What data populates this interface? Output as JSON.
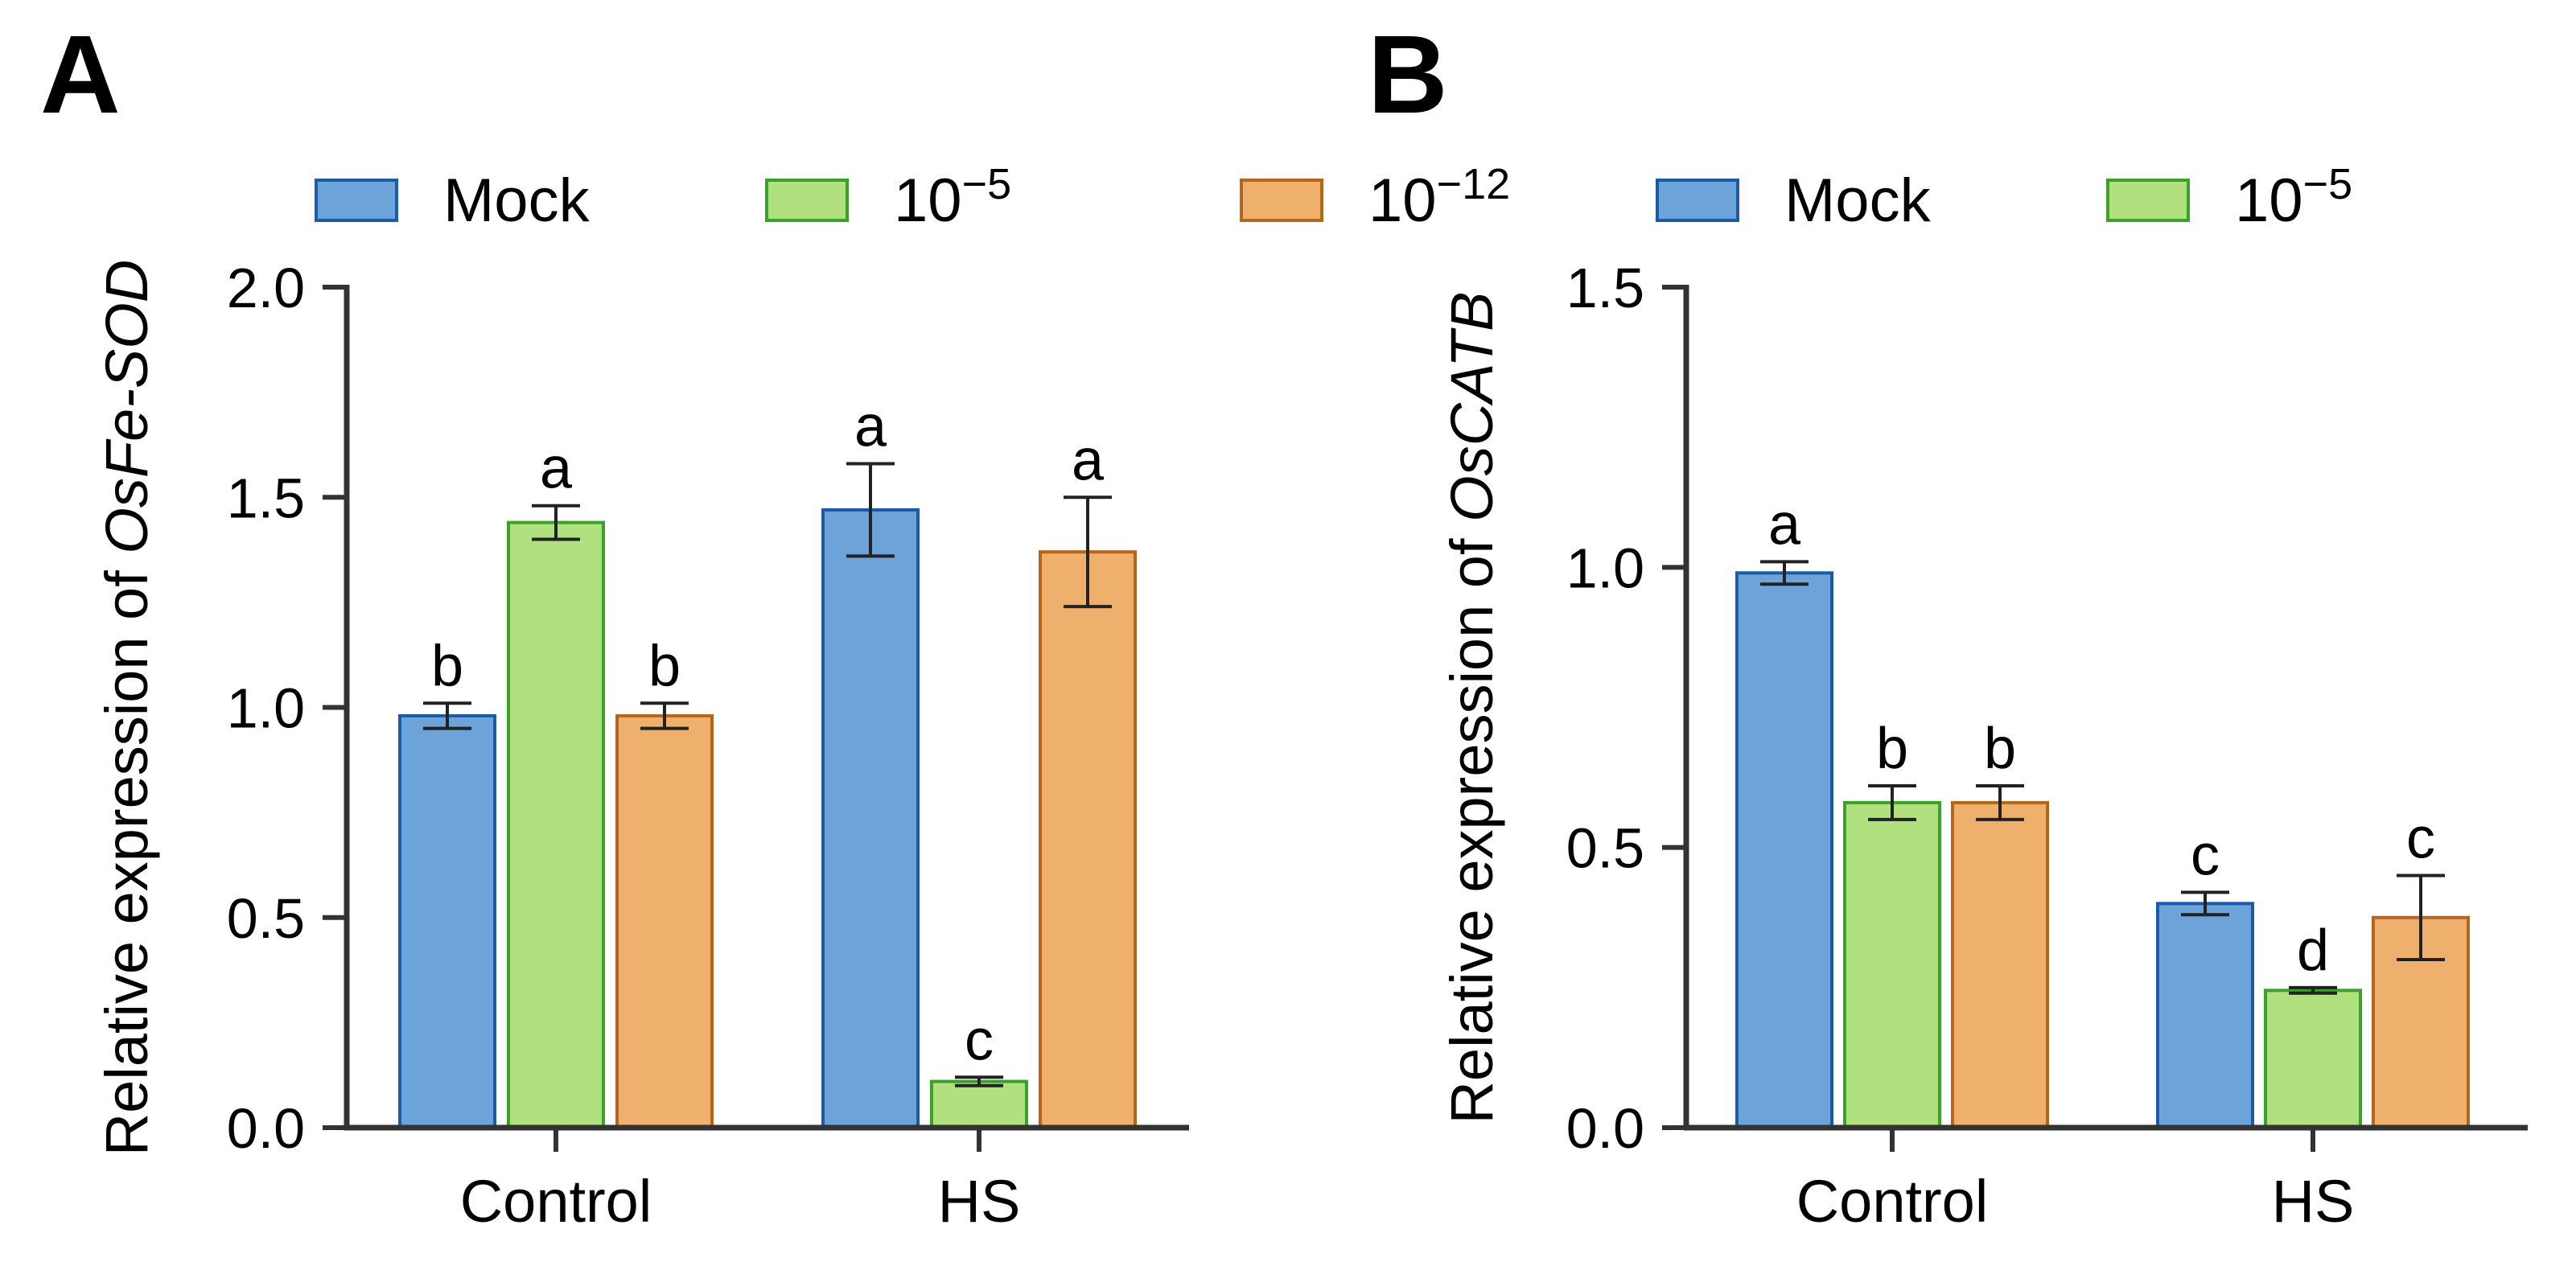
{
  "chart_data": [
    {
      "panel_label": "A",
      "type": "bar",
      "title": "",
      "ylabel": {
        "prefix": "Relative expression of ",
        "gene": "OsFe-SOD"
      },
      "ylim": [
        0,
        2.0
      ],
      "yticks": [
        0.0,
        0.5,
        1.0,
        1.5,
        2.0
      ],
      "ytick_labels": [
        "0.0",
        "0.5",
        "1.0",
        "1.5",
        "2.0"
      ],
      "categories": [
        "Control",
        "HS"
      ],
      "series": [
        {
          "name": "Mock",
          "color": "#6ca3d9",
          "edge": "#1a5aa8",
          "values": [
            0.98,
            1.47
          ],
          "errors": [
            0.03,
            0.11
          ],
          "letters": [
            "b",
            "a"
          ]
        },
        {
          "name": "10−5",
          "color": "#b1e07f",
          "edge": "#3aa12a",
          "values": [
            1.44,
            0.11
          ],
          "errors": [
            0.04,
            0.01
          ],
          "letters": [
            "a",
            "c"
          ]
        },
        {
          "name": "10−12",
          "color": "#efb06d",
          "edge": "#b5661b",
          "values": [
            0.98,
            1.37
          ],
          "errors": [
            0.03,
            0.13
          ],
          "letters": [
            "b",
            "a"
          ]
        }
      ]
    },
    {
      "panel_label": "B",
      "type": "bar",
      "title": "",
      "ylabel": {
        "prefix": "Relative expression of ",
        "gene": "OsCATB"
      },
      "ylim": [
        0,
        1.5
      ],
      "yticks": [
        0.0,
        0.5,
        1.0,
        1.5
      ],
      "ytick_labels": [
        "0.0",
        "0.5",
        "1.0",
        "1.5"
      ],
      "categories": [
        "Control",
        "HS"
      ],
      "series": [
        {
          "name": "Mock",
          "color": "#6ca3d9",
          "edge": "#1a5aa8",
          "values": [
            0.99,
            0.4
          ],
          "errors": [
            0.02,
            0.02
          ],
          "letters": [
            "a",
            "c"
          ]
        },
        {
          "name": "10−5",
          "color": "#b1e07f",
          "edge": "#3aa12a",
          "values": [
            0.58,
            0.245
          ],
          "errors": [
            0.03,
            0.005
          ],
          "letters": [
            "b",
            "d"
          ]
        },
        {
          "name": "10−12",
          "color": "#efb06d",
          "edge": "#b5661b",
          "values": [
            0.58,
            0.375
          ],
          "errors": [
            0.03,
            0.075
          ],
          "letters": [
            "b",
            "c"
          ]
        }
      ]
    }
  ],
  "legend": [
    {
      "base": "Mock",
      "sup": ""
    },
    {
      "base": "10",
      "sup": "−5"
    },
    {
      "base": "10",
      "sup": "−12"
    }
  ]
}
